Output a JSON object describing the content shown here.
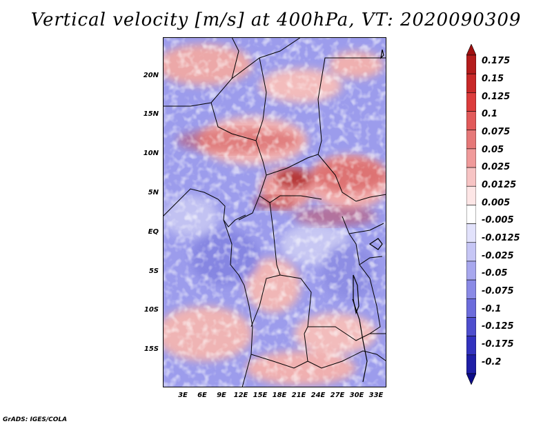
{
  "title": "Vertical velocity [m/s] at 400hPa, VT: 2020090309",
  "footer": "GrADS: IGES/COLA",
  "lat_labels": [
    "20N",
    "15N",
    "10N",
    "5N",
    "EQ",
    "5S",
    "10S",
    "15S"
  ],
  "lon_labels": [
    "3E",
    "6E",
    "9E",
    "12E",
    "15E",
    "18E",
    "21E",
    "24E",
    "27E",
    "30E",
    "33E"
  ],
  "colorbar": {
    "labels": [
      "0.175",
      "0.15",
      "0.125",
      "0.1",
      "0.075",
      "0.05",
      "0.025",
      "0.0125",
      "0.005",
      "-0.005",
      "-0.0125",
      "-0.025",
      "-0.05",
      "-0.075",
      "-0.1",
      "-0.125",
      "-0.175",
      "-0.2"
    ],
    "colors": [
      "#a01010",
      "#b41c1c",
      "#c82828",
      "#dc3c3c",
      "#e25a5a",
      "#e67878",
      "#f09a9a",
      "#f7c4c4",
      "#fde6e6",
      "#ffffff",
      "#e2e2fb",
      "#c6c6f5",
      "#a8a8ee",
      "#8a8ae6",
      "#6c6cdc",
      "#4e4ece",
      "#3232be",
      "#1e1ea6",
      "#0c0c88"
    ]
  }
}
